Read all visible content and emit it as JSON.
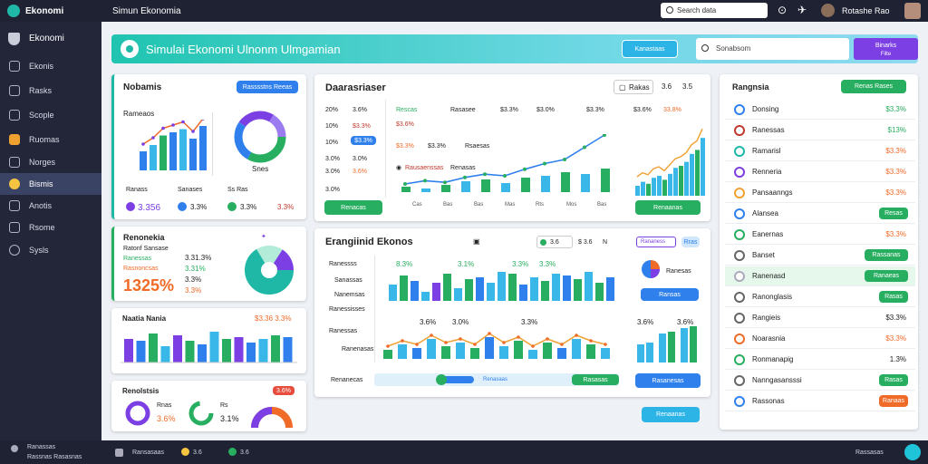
{
  "topbar": {
    "app_name": "Ekonomi",
    "menu_label": "Simun Ekonomia",
    "search_placeholder": "Search data",
    "user_name": "Rotashe Rao"
  },
  "sidebar": {
    "brand": "Ekonomi",
    "items": [
      {
        "label": "Ekonis"
      },
      {
        "label": "Rasks"
      },
      {
        "label": "Scople"
      },
      {
        "label": "Ruomas"
      },
      {
        "label": "Norges"
      },
      {
        "label": "Bismis",
        "active": true
      },
      {
        "label": "Anotis"
      },
      {
        "label": "Rsome"
      },
      {
        "label": "Sysls"
      }
    ]
  },
  "banner": {
    "title": "Simulai Ekonomi Ulnonm Ulmgamian",
    "button1": "Kanastaas",
    "search_placeholder": "Sonabsom",
    "button2_line1": "Binarks",
    "button2_line2": "Filte"
  },
  "card_left1": {
    "title": "Nobamis",
    "badge": "Rasssstns Reeas",
    "subtitle": "Rameaos",
    "donut_label": "Snes",
    "stat_labels": [
      "Ranass",
      "Sanases",
      "Ss Ras"
    ],
    "stat_values": [
      "3.356",
      "3.3%",
      "3.3%",
      "3.3%"
    ]
  },
  "card_left2": {
    "title": "Renonekia",
    "lines": [
      "Ratonf Sansase",
      "Ranessas",
      "Rasnoncsas"
    ],
    "big_value": "1325%",
    "stat_values": [
      "3.31.3%",
      "3.31%",
      "3.3%",
      "3.3%"
    ]
  },
  "card_left3": {
    "title": "Naatia Nania",
    "value": "$3.36 3.3%"
  },
  "card_left4": {
    "title": "Renolstsis",
    "badge": "3.6%",
    "labels": [
      "Rnas",
      "3.6%",
      "Rs",
      "3.1%"
    ]
  },
  "card_center1": {
    "title": "Daarasriaser",
    "tab": "Rakas",
    "tab_values": [
      "3.6",
      "3.5"
    ],
    "header_values": [
      "3.6%",
      "3.0%",
      "3.6%",
      "3.6%"
    ],
    "legend": [
      "Rescas",
      "Rasasee",
      "Rsaesas"
    ],
    "amounts": [
      "$3.3%",
      "$3.3%"
    ],
    "row_values": [
      "$3.3%",
      "$3.0%",
      "$3.3%",
      "33.8%"
    ],
    "leftcol": [
      "20%",
      "10%",
      "10%",
      "3.0%",
      "3.0%",
      "3.0%"
    ],
    "sub_labels": [
      "Rausaenssas",
      "Renasas"
    ],
    "table_values": [
      "$3.6%",
      "$3.6%",
      "$3.3%",
      "$3.3%"
    ],
    "button_left": "Renacas",
    "button_right": "Renaanas",
    "x_ticks": [
      "Cas",
      "Bas",
      "Bas",
      "Mas",
      "Rts",
      "Mos",
      "Bas"
    ]
  },
  "card_center2": {
    "title": "Erangiinid Ekonos",
    "controls": [
      "3.6",
      "$ 3.6",
      "N"
    ],
    "badge": "Rananess",
    "badge2": "Rras",
    "ylabels": [
      "Ranessss",
      "Sanassas",
      "Nanemsas",
      "Ranessisses",
      "Ranessas",
      "Ranenasas"
    ],
    "top_values": [
      "8.3%",
      "3.1%",
      "3.3%",
      "3.3%",
      "3.3%"
    ],
    "line_values": [
      "3.6%",
      "3.0%",
      "3.3%",
      "3.6%",
      "3.6%"
    ],
    "right_labels": [
      "Ranesas",
      "Ransas"
    ],
    "bottom_left": "Renanecas",
    "slider_label": "Renasaas",
    "slider_label2": "Rasasas",
    "button_right": "Rasanesas",
    "ticks": [
      "Bos",
      "Bes",
      "Bbs",
      "Fas",
      "Mbs",
      "Bas",
      "Bas"
    ]
  },
  "card_right": {
    "title": "Rangnsia",
    "badge": "Renas Rases",
    "rows": [
      {
        "label": "Donsing",
        "value": "$3.3%",
        "kind": "green"
      },
      {
        "label": "Ranessas",
        "value": "$13%",
        "kind": "green"
      },
      {
        "label": "Ramarisl",
        "value": "$3.3%",
        "kind": "orange"
      },
      {
        "label": "Renneria",
        "value": "$3.3%",
        "kind": "orange"
      },
      {
        "label": "Pansaanngs",
        "value": "$3.3%",
        "kind": "orange"
      },
      {
        "label": "Alansea",
        "value": "Resas",
        "kind": "greenpill"
      },
      {
        "label": "Eanernas",
        "value": "$3.3%",
        "kind": "orange"
      },
      {
        "label": "Banset",
        "value": "Rassanas",
        "kind": "greenpill"
      },
      {
        "label": "Ranenasd",
        "value": "Ranaeas",
        "kind": "greenpill"
      },
      {
        "label": "Ranonglasis",
        "value": "Rasas",
        "kind": "greenpill"
      },
      {
        "label": "Rangieis",
        "value": "$3.3%",
        "kind": "dark"
      },
      {
        "label": "Noarasnia",
        "value": "$3.3%",
        "kind": "orange"
      },
      {
        "label": "Ronmanapig",
        "value": "1.3%",
        "kind": "dark"
      },
      {
        "label": "Nanngasansssi",
        "value": "Rasas",
        "kind": "greenpill"
      },
      {
        "label": "Rassonas",
        "value": "Ranaas",
        "kind": "redpill"
      }
    ]
  },
  "footer": {
    "left_line1": "Ranassas",
    "left_line2": "Rassnas Rasasnas",
    "center": [
      "Ransasaas",
      "3.6",
      "3.6"
    ],
    "right": "Rassasas"
  },
  "colors": {
    "teal": "#1fb8a7",
    "green": "#27ae60",
    "blue": "#2f80ed",
    "orange": "#f06a28",
    "purple": "#7b3fe4",
    "sky": "#38b7e8",
    "dark": "#1f2233"
  },
  "chart_data": [
    {
      "type": "bar",
      "series": [
        {
          "values": [
            30,
            40,
            55,
            60,
            65,
            50,
            70
          ]
        }
      ],
      "categories": [
        "1",
        "2",
        "3",
        "4",
        "5",
        "6",
        "7"
      ]
    },
    {
      "type": "bar",
      "series": [
        {
          "values": [
            26,
            24,
            32,
            18,
            30,
            24,
            20,
            34,
            26,
            28,
            22,
            26,
            30,
            28
          ]
        }
      ],
      "categories": [
        "1",
        "2",
        "3",
        "4",
        "5",
        "6",
        "7",
        "8",
        "9",
        "10",
        "11",
        "12",
        "13",
        "14"
      ]
    },
    {
      "type": "line",
      "series": [
        {
          "values": [
            10,
            14,
            12,
            18,
            22,
            20,
            28,
            35,
            40,
            55,
            70
          ]
        }
      ],
      "categories": [
        "1",
        "2",
        "3",
        "4",
        "5",
        "6",
        "7",
        "8",
        "9",
        "10",
        "11"
      ]
    },
    {
      "type": "bar",
      "series": [
        {
          "values": [
            10,
            14,
            12,
            18,
            20,
            16,
            22,
            28,
            30,
            34,
            42,
            46,
            58
          ]
        }
      ],
      "categories": [
        "1",
        "2",
        "3",
        "4",
        "5",
        "6",
        "7",
        "8",
        "9",
        "10",
        "11",
        "12",
        "13"
      ]
    }
  ]
}
